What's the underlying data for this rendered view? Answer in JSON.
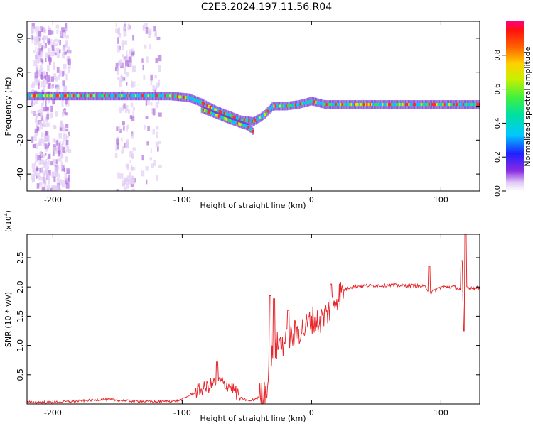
{
  "title": "C2E3.2024.197.11.56.R04",
  "colorbar": {
    "label": "Normalized spectral amplitude",
    "ticks": [
      "0.0",
      "0.2",
      "0.4",
      "0.6",
      "0.8"
    ],
    "tick_values": [
      0.0,
      0.2,
      0.4,
      0.6,
      0.8
    ],
    "range": [
      0,
      1
    ]
  },
  "chart_data": [
    {
      "type": "heatmap",
      "name": "spectrogram",
      "xlabel": "Height of straight line (km)",
      "ylabel": "Frequency (Hz)",
      "xlim": [
        -220,
        130
      ],
      "ylim": [
        -50,
        50
      ],
      "xticks": [
        -200,
        -100,
        0,
        100
      ],
      "xtick_labels": [
        "-200",
        "-100",
        "0",
        "100"
      ],
      "yticks": [
        -40,
        -20,
        0,
        20,
        40
      ],
      "ytick_labels": [
        "-40",
        "-20",
        "0",
        "20",
        "40"
      ],
      "main_tone": {
        "x": [
          -220,
          -180,
          -140,
          -110,
          -95,
          -85,
          -75,
          -65,
          -55,
          -45,
          -38,
          -30,
          -20,
          -10,
          0,
          10,
          30,
          60,
          90,
          120,
          130
        ],
        "y": [
          6,
          6,
          6,
          6,
          5,
          2,
          -2,
          -5,
          -8,
          -9,
          -6,
          0,
          0,
          1,
          3,
          1,
          1,
          1,
          1,
          1,
          1
        ]
      },
      "secondary_tone": {
        "x": [
          -85,
          -75,
          -65,
          -58,
          -50,
          -45
        ],
        "y": [
          -2,
          -5,
          -8,
          -10,
          -12,
          -15
        ]
      }
    },
    {
      "type": "line",
      "name": "snr",
      "xlabel": "Height of straight line (km)",
      "ylabel": "SNR (10 * v/v)",
      "scale_label": "(x10",
      "scale_exp": "4",
      "xlim": [
        -220,
        130
      ],
      "ylim": [
        0,
        2.9
      ],
      "xticks": [
        -200,
        -100,
        0,
        100
      ],
      "xtick_labels": [
        "-200",
        "-100",
        "0",
        "100"
      ],
      "yticks": [
        0.5,
        1.0,
        1.5,
        2.0,
        2.5
      ],
      "ytick_labels": [
        "0.5",
        "1.0",
        "1.5",
        "2.0",
        "2.5"
      ],
      "color": "#e8282c",
      "series_envelope": {
        "x": [
          -220,
          -200,
          -180,
          -160,
          -140,
          -120,
          -105,
          -100,
          -90,
          -80,
          -72,
          -68,
          -62,
          -55,
          -48,
          -42,
          -38,
          -34,
          -30,
          -25,
          -20,
          -15,
          -10,
          -5,
          0,
          5,
          10,
          15,
          20,
          25,
          30,
          40,
          60,
          80,
          88,
          92,
          100,
          110,
          116,
          118,
          120,
          125,
          130
        ],
        "y": [
          0.03,
          0.03,
          0.05,
          0.08,
          0.05,
          0.04,
          0.05,
          0.08,
          0.2,
          0.3,
          0.4,
          0.35,
          0.3,
          0.1,
          0.05,
          0.1,
          0.15,
          0.35,
          0.85,
          1.05,
          1.05,
          1.15,
          1.25,
          1.3,
          1.45,
          1.4,
          1.5,
          1.65,
          1.85,
          1.95,
          2.0,
          2.02,
          2.03,
          2.02,
          2.0,
          1.9,
          2.0,
          2.0,
          1.95,
          1.7,
          2.0,
          1.98,
          1.98
        ]
      },
      "spikes": [
        {
          "x": -73,
          "y": 0.72
        },
        {
          "x": -32,
          "y": 1.85
        },
        {
          "x": -29,
          "y": 1.8
        },
        {
          "x": -18,
          "y": 1.6
        },
        {
          "x": 15,
          "y": 2.05
        },
        {
          "x": 91,
          "y": 2.35
        },
        {
          "x": 116,
          "y": 2.45
        },
        {
          "x": 118,
          "y": 1.25
        },
        {
          "x": 119,
          "y": 2.9
        }
      ]
    }
  ]
}
